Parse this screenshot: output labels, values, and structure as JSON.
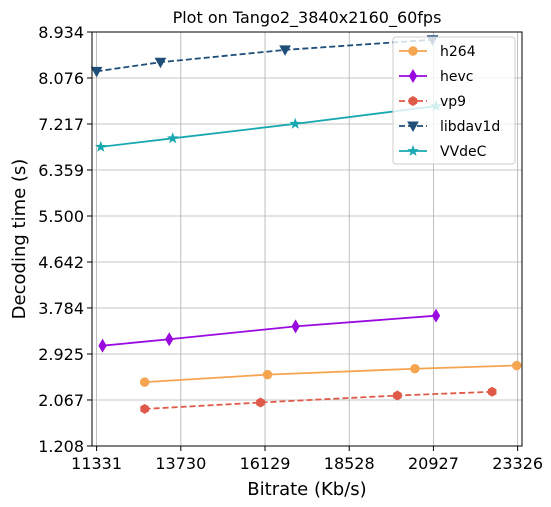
{
  "chart_data": {
    "type": "line",
    "title": "Plot on Tango2_3840x2160_60fps",
    "xlabel": "Bitrate (Kb/s)",
    "ylabel": "Decoding time (s)",
    "xlim": [
      11200,
      23450
    ],
    "ylim": [
      1.208,
      8.934
    ],
    "xticks": [
      11331,
      13730,
      16129,
      18528,
      20927,
      23326
    ],
    "xtick_labels": [
      "11331",
      "13730",
      "16129",
      "18528",
      "20927",
      "23326"
    ],
    "yticks": [
      1.208,
      2.067,
      2.925,
      3.784,
      4.642,
      5.5,
      6.359,
      7.217,
      8.076,
      8.934
    ],
    "ytick_labels": [
      "1.208",
      "2.067",
      "2.925",
      "3.784",
      "4.642",
      "5.500",
      "6.359",
      "7.217",
      "8.076",
      "8.934"
    ],
    "grid": true,
    "legend_position": "top-right",
    "series": [
      {
        "name": "h264",
        "color": "#f5a550",
        "line_style": "solid",
        "marker": "circle",
        "x": [
          12700,
          16200,
          20400,
          23300
        ],
        "y": [
          2.4,
          2.54,
          2.65,
          2.71
        ]
      },
      {
        "name": "hevc",
        "color": "#9a0ae0",
        "line_style": "solid",
        "marker": "diamond",
        "x": [
          11500,
          13400,
          17000,
          21000
        ],
        "y": [
          3.08,
          3.2,
          3.44,
          3.64
        ]
      },
      {
        "name": "vp9",
        "color": "#e05a4a",
        "line_style": "dashed",
        "marker": "hexagon",
        "x": [
          12700,
          16000,
          19900,
          22600
        ],
        "y": [
          1.9,
          2.02,
          2.15,
          2.22
        ]
      },
      {
        "name": "libdav1d",
        "color": "#1f4e79",
        "line_style": "dashed",
        "marker": "triangle-down",
        "x": [
          11331,
          13150,
          16700,
          20900
        ],
        "y": [
          8.2,
          8.37,
          8.6,
          8.79
        ]
      },
      {
        "name": "VVdeC",
        "color": "#17a8b0",
        "line_style": "solid",
        "marker": "star",
        "x": [
          11450,
          13500,
          16990,
          21000
        ],
        "y": [
          6.79,
          6.95,
          7.22,
          7.55
        ]
      }
    ]
  }
}
